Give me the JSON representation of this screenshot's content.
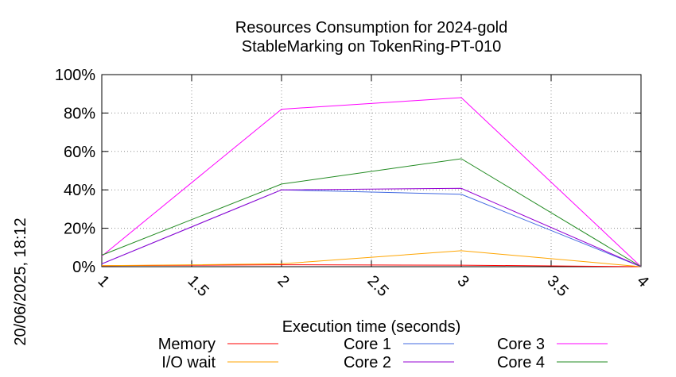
{
  "chart_data": {
    "type": "line",
    "title": "Resources Consumption for 2024-gold",
    "subtitle": "StableMarking on TokenRing-PT-010",
    "xlabel": "Execution time (seconds)",
    "ylabel": "",
    "side_label": "20/06/2025, 18:12",
    "x": [
      1,
      2,
      3,
      4
    ],
    "xlim": [
      1,
      4
    ],
    "ylim": [
      0,
      100
    ],
    "x_ticks": [
      1,
      1.5,
      2,
      2.5,
      3,
      3.5,
      4
    ],
    "x_tick_labels": [
      "1",
      "1.5",
      "2",
      "2.5",
      "3",
      "3.5",
      "4"
    ],
    "y_ticks": [
      0,
      20,
      40,
      60,
      80,
      100
    ],
    "y_tick_labels": [
      "0%",
      "20%",
      "40%",
      "60%",
      "80%",
      "100%"
    ],
    "grid": true,
    "legend_position": "bottom",
    "series": [
      {
        "name": "Memory",
        "color": "#ff0000",
        "values": [
          0.5,
          1.0,
          0.8,
          0
        ]
      },
      {
        "name": "I/O wait",
        "color": "#ffa500",
        "values": [
          0.5,
          1.5,
          8.3,
          0
        ]
      },
      {
        "name": "Core 1",
        "color": "#4169e1",
        "values": [
          1.5,
          40.0,
          37.7,
          0
        ]
      },
      {
        "name": "Core 2",
        "color": "#9400d3",
        "values": [
          1.5,
          40.0,
          40.8,
          0
        ]
      },
      {
        "name": "Core 3",
        "color": "#ff00ff",
        "values": [
          5.5,
          82.0,
          88.0,
          0
        ]
      },
      {
        "name": "Core 4",
        "color": "#228b22",
        "values": [
          6.0,
          43.0,
          56.2,
          0
        ]
      }
    ]
  }
}
